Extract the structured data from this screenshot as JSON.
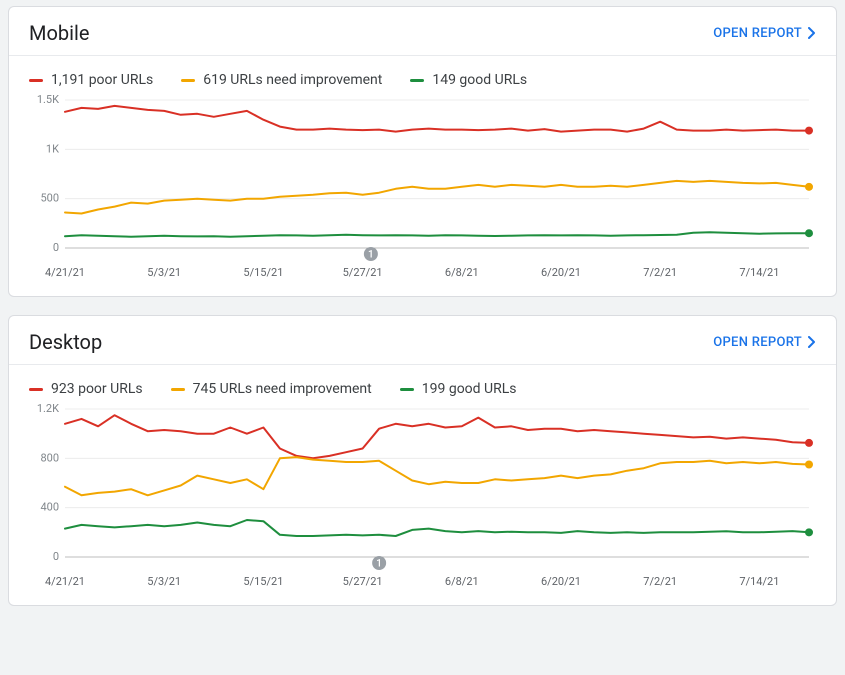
{
  "open_report_label": "OPEN REPORT",
  "panels": [
    {
      "id": "mobile",
      "title": "Mobile",
      "legend": [
        {
          "color": "#d93025",
          "label": "1,191 poor URLs"
        },
        {
          "color": "#f2a600",
          "label": "619 URLs need improvement"
        },
        {
          "color": "#1e8e3e",
          "label": "149 good URLs"
        }
      ],
      "chart": {
        "type": "line",
        "background_color": "#ffffff",
        "grid_color": "#ececec",
        "axis_color": "#bdbdbd",
        "line_width": 2,
        "end_marker_radius": 4,
        "ylim": [
          0,
          1500
        ],
        "yticks": [
          0,
          500,
          1000,
          1500
        ],
        "ytick_labels": [
          "0",
          "500",
          "1K",
          "1.5K"
        ],
        "xlim": [
          0,
          90
        ],
        "xticks": [
          0,
          12,
          24,
          36,
          48,
          60,
          72,
          84
        ],
        "xtick_labels": [
          "4/21/21",
          "5/3/21",
          "5/15/21",
          "5/27/21",
          "6/8/21",
          "6/20/21",
          "7/2/21",
          "7/14/21"
        ],
        "event_marker": {
          "x": 37,
          "label": "1"
        },
        "series": [
          {
            "name": "poor",
            "color": "#d93025",
            "x": [
              0,
              2,
              4,
              6,
              8,
              10,
              12,
              14,
              16,
              18,
              20,
              22,
              24,
              26,
              28,
              30,
              32,
              34,
              36,
              38,
              40,
              42,
              44,
              46,
              48,
              50,
              52,
              54,
              56,
              58,
              60,
              62,
              64,
              66,
              68,
              70,
              72,
              74,
              76,
              78,
              80,
              82,
              84,
              86,
              88,
              90
            ],
            "y": [
              1380,
              1420,
              1410,
              1440,
              1420,
              1400,
              1390,
              1350,
              1360,
              1330,
              1360,
              1390,
              1300,
              1230,
              1200,
              1200,
              1210,
              1200,
              1195,
              1200,
              1180,
              1200,
              1210,
              1200,
              1200,
              1195,
              1200,
              1210,
              1190,
              1205,
              1180,
              1190,
              1200,
              1200,
              1180,
              1210,
              1280,
              1200,
              1190,
              1190,
              1200,
              1190,
              1195,
              1200,
              1190,
              1190
            ]
          },
          {
            "name": "improve",
            "color": "#f2a600",
            "x": [
              0,
              2,
              4,
              6,
              8,
              10,
              12,
              14,
              16,
              18,
              20,
              22,
              24,
              26,
              28,
              30,
              32,
              34,
              36,
              38,
              40,
              42,
              44,
              46,
              48,
              50,
              52,
              54,
              56,
              58,
              60,
              62,
              64,
              66,
              68,
              70,
              72,
              74,
              76,
              78,
              80,
              82,
              84,
              86,
              88,
              90
            ],
            "y": [
              360,
              350,
              390,
              420,
              460,
              450,
              480,
              490,
              500,
              490,
              480,
              500,
              500,
              520,
              530,
              540,
              555,
              560,
              540,
              560,
              600,
              620,
              600,
              600,
              620,
              640,
              620,
              640,
              630,
              620,
              640,
              620,
              620,
              630,
              620,
              640,
              660,
              680,
              670,
              680,
              670,
              660,
              655,
              660,
              640,
              620
            ]
          },
          {
            "name": "good",
            "color": "#1e8e3e",
            "x": [
              0,
              2,
              4,
              6,
              8,
              10,
              12,
              14,
              16,
              18,
              20,
              22,
              24,
              26,
              28,
              30,
              32,
              34,
              36,
              38,
              40,
              42,
              44,
              46,
              48,
              50,
              52,
              54,
              56,
              58,
              60,
              62,
              64,
              66,
              68,
              70,
              72,
              74,
              76,
              78,
              80,
              82,
              84,
              86,
              88,
              90
            ],
            "y": [
              120,
              130,
              125,
              120,
              115,
              120,
              125,
              120,
              118,
              120,
              115,
              120,
              125,
              130,
              128,
              125,
              130,
              135,
              130,
              128,
              130,
              128,
              125,
              130,
              128,
              125,
              122,
              125,
              128,
              130,
              128,
              130,
              128,
              125,
              128,
              130,
              132,
              135,
              155,
              160,
              155,
              150,
              145,
              148,
              150,
              150
            ]
          }
        ]
      }
    },
    {
      "id": "desktop",
      "title": "Desktop",
      "legend": [
        {
          "color": "#d93025",
          "label": "923 poor URLs"
        },
        {
          "color": "#f2a600",
          "label": "745 URLs need improvement"
        },
        {
          "color": "#1e8e3e",
          "label": "199 good URLs"
        }
      ],
      "chart": {
        "type": "line",
        "background_color": "#ffffff",
        "grid_color": "#ececec",
        "axis_color": "#bdbdbd",
        "line_width": 2,
        "end_marker_radius": 4,
        "ylim": [
          0,
          1200
        ],
        "yticks": [
          0,
          400,
          800,
          1200
        ],
        "ytick_labels": [
          "0",
          "400",
          "800",
          "1.2K"
        ],
        "xlim": [
          0,
          90
        ],
        "xticks": [
          0,
          12,
          24,
          36,
          48,
          60,
          72,
          84
        ],
        "xtick_labels": [
          "4/21/21",
          "5/3/21",
          "5/15/21",
          "5/27/21",
          "6/8/21",
          "6/20/21",
          "7/2/21",
          "7/14/21"
        ],
        "event_marker": {
          "x": 38,
          "label": "1"
        },
        "series": [
          {
            "name": "poor",
            "color": "#d93025",
            "x": [
              0,
              2,
              4,
              6,
              8,
              10,
              12,
              14,
              16,
              18,
              20,
              22,
              24,
              26,
              28,
              30,
              32,
              34,
              36,
              38,
              40,
              42,
              44,
              46,
              48,
              50,
              52,
              54,
              56,
              58,
              60,
              62,
              64,
              66,
              68,
              70,
              72,
              74,
              76,
              78,
              80,
              82,
              84,
              86,
              88,
              90
            ],
            "y": [
              1080,
              1120,
              1060,
              1150,
              1080,
              1020,
              1030,
              1020,
              1000,
              1000,
              1050,
              1000,
              1050,
              880,
              820,
              800,
              820,
              850,
              880,
              1040,
              1080,
              1060,
              1080,
              1050,
              1060,
              1130,
              1050,
              1060,
              1030,
              1040,
              1040,
              1020,
              1030,
              1020,
              1010,
              1000,
              990,
              980,
              970,
              975,
              960,
              970,
              960,
              950,
              930,
              925
            ]
          },
          {
            "name": "improve",
            "color": "#f2a600",
            "x": [
              0,
              2,
              4,
              6,
              8,
              10,
              12,
              14,
              16,
              18,
              20,
              22,
              24,
              26,
              28,
              30,
              32,
              34,
              36,
              38,
              40,
              42,
              44,
              46,
              48,
              50,
              52,
              54,
              56,
              58,
              60,
              62,
              64,
              66,
              68,
              70,
              72,
              74,
              76,
              78,
              80,
              82,
              84,
              86,
              88,
              90
            ],
            "y": [
              570,
              500,
              520,
              530,
              550,
              500,
              540,
              580,
              660,
              630,
              600,
              630,
              550,
              800,
              810,
              790,
              780,
              770,
              770,
              780,
              700,
              620,
              590,
              610,
              600,
              600,
              630,
              620,
              630,
              640,
              660,
              640,
              660,
              670,
              700,
              720,
              760,
              770,
              770,
              780,
              760,
              770,
              760,
              770,
              755,
              750
            ]
          },
          {
            "name": "good",
            "color": "#1e8e3e",
            "x": [
              0,
              2,
              4,
              6,
              8,
              10,
              12,
              14,
              16,
              18,
              20,
              22,
              24,
              26,
              28,
              30,
              32,
              34,
              36,
              38,
              40,
              42,
              44,
              46,
              48,
              50,
              52,
              54,
              56,
              58,
              60,
              62,
              64,
              66,
              68,
              70,
              72,
              74,
              76,
              78,
              80,
              82,
              84,
              86,
              88,
              90
            ],
            "y": [
              230,
              260,
              250,
              240,
              250,
              260,
              250,
              260,
              280,
              260,
              250,
              300,
              290,
              180,
              170,
              170,
              175,
              180,
              175,
              180,
              170,
              220,
              230,
              210,
              200,
              210,
              200,
              205,
              200,
              200,
              195,
              210,
              200,
              195,
              200,
              195,
              200,
              200,
              200,
              205,
              208,
              200,
              200,
              205,
              210,
              200
            ]
          }
        ]
      }
    }
  ]
}
